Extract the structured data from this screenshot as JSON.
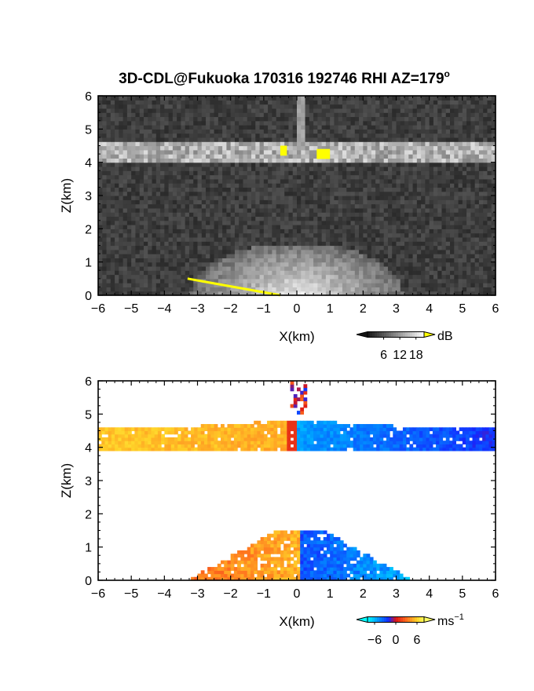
{
  "figure": {
    "title": "3D-CDL@Fukuoka 170316 192746 RHI AZ=179",
    "title_suffix": "o"
  },
  "chart_data": [
    {
      "type": "heatmap",
      "name": "reflectivity-panel",
      "colormap": "grayscale",
      "highlight_color": "#ffff00",
      "xlabel": "X(km)",
      "ylabel": "Z(km)",
      "xlim": [
        -6,
        6
      ],
      "ylim": [
        0,
        6
      ],
      "xticks": [
        -6,
        -5,
        -4,
        -3,
        -2,
        -1,
        0,
        1,
        2,
        3,
        4,
        5,
        6
      ],
      "yticks": [
        0,
        1,
        2,
        3,
        4,
        5,
        6
      ],
      "colorbar": {
        "unit": "dB",
        "ticks": [
          6,
          12,
          18
        ],
        "range": [
          0,
          21
        ]
      },
      "features": [
        {
          "kind": "band",
          "x": [
            -6,
            6
          ],
          "z": [
            4.0,
            4.6
          ],
          "level_db": 14
        },
        {
          "kind": "fan",
          "x": [
            -3,
            3
          ],
          "z": [
            0,
            1.5
          ],
          "level_db": 12
        },
        {
          "kind": "spike",
          "x": [
            0.0,
            0.2
          ],
          "z": [
            4.0,
            6.0
          ],
          "level_db": 11
        },
        {
          "kind": "saturated",
          "x": [
            -0.5,
            -0.3
          ],
          "z": [
            4.2,
            4.5
          ],
          "level_db": 21
        },
        {
          "kind": "saturated",
          "x": [
            0.6,
            1.0
          ],
          "z": [
            4.1,
            4.4
          ],
          "level_db": 21
        },
        {
          "kind": "saturated_line",
          "x": [
            -3.3,
            -0.5
          ],
          "z": [
            0.5,
            0.0
          ],
          "level_db": 21
        }
      ]
    },
    {
      "type": "heatmap",
      "name": "velocity-panel",
      "colormap": "cyan-blue-red-yellow",
      "xlabel": "X(km)",
      "ylabel": "Z(km)",
      "xlim": [
        -6,
        6
      ],
      "ylim": [
        0,
        6
      ],
      "xticks": [
        -6,
        -5,
        -4,
        -3,
        -2,
        -1,
        0,
        1,
        2,
        3,
        4,
        5,
        6
      ],
      "yticks": [
        0,
        1,
        2,
        3,
        4,
        5,
        6
      ],
      "colorbar": {
        "unit": "ms",
        "unit_exponent": "−1",
        "tick_labels": [
          "−6",
          "0",
          "6"
        ],
        "ticks": [
          -6,
          0,
          6
        ],
        "range": [
          -8,
          8
        ]
      },
      "features": [
        {
          "kind": "upper_layer",
          "x": [
            -6,
            6
          ],
          "z": [
            3.9,
            4.9
          ],
          "velocity_west": 5,
          "velocity_east": -6
        },
        {
          "kind": "lower_layer",
          "x": [
            -3.8,
            3.2
          ],
          "z": [
            0.0,
            1.5
          ],
          "velocity_west": 6,
          "velocity_east": -4
        },
        {
          "kind": "scatter",
          "x": [
            -0.2,
            0.3
          ],
          "z": [
            5.0,
            6.0
          ],
          "velocity": 1
        }
      ]
    }
  ]
}
